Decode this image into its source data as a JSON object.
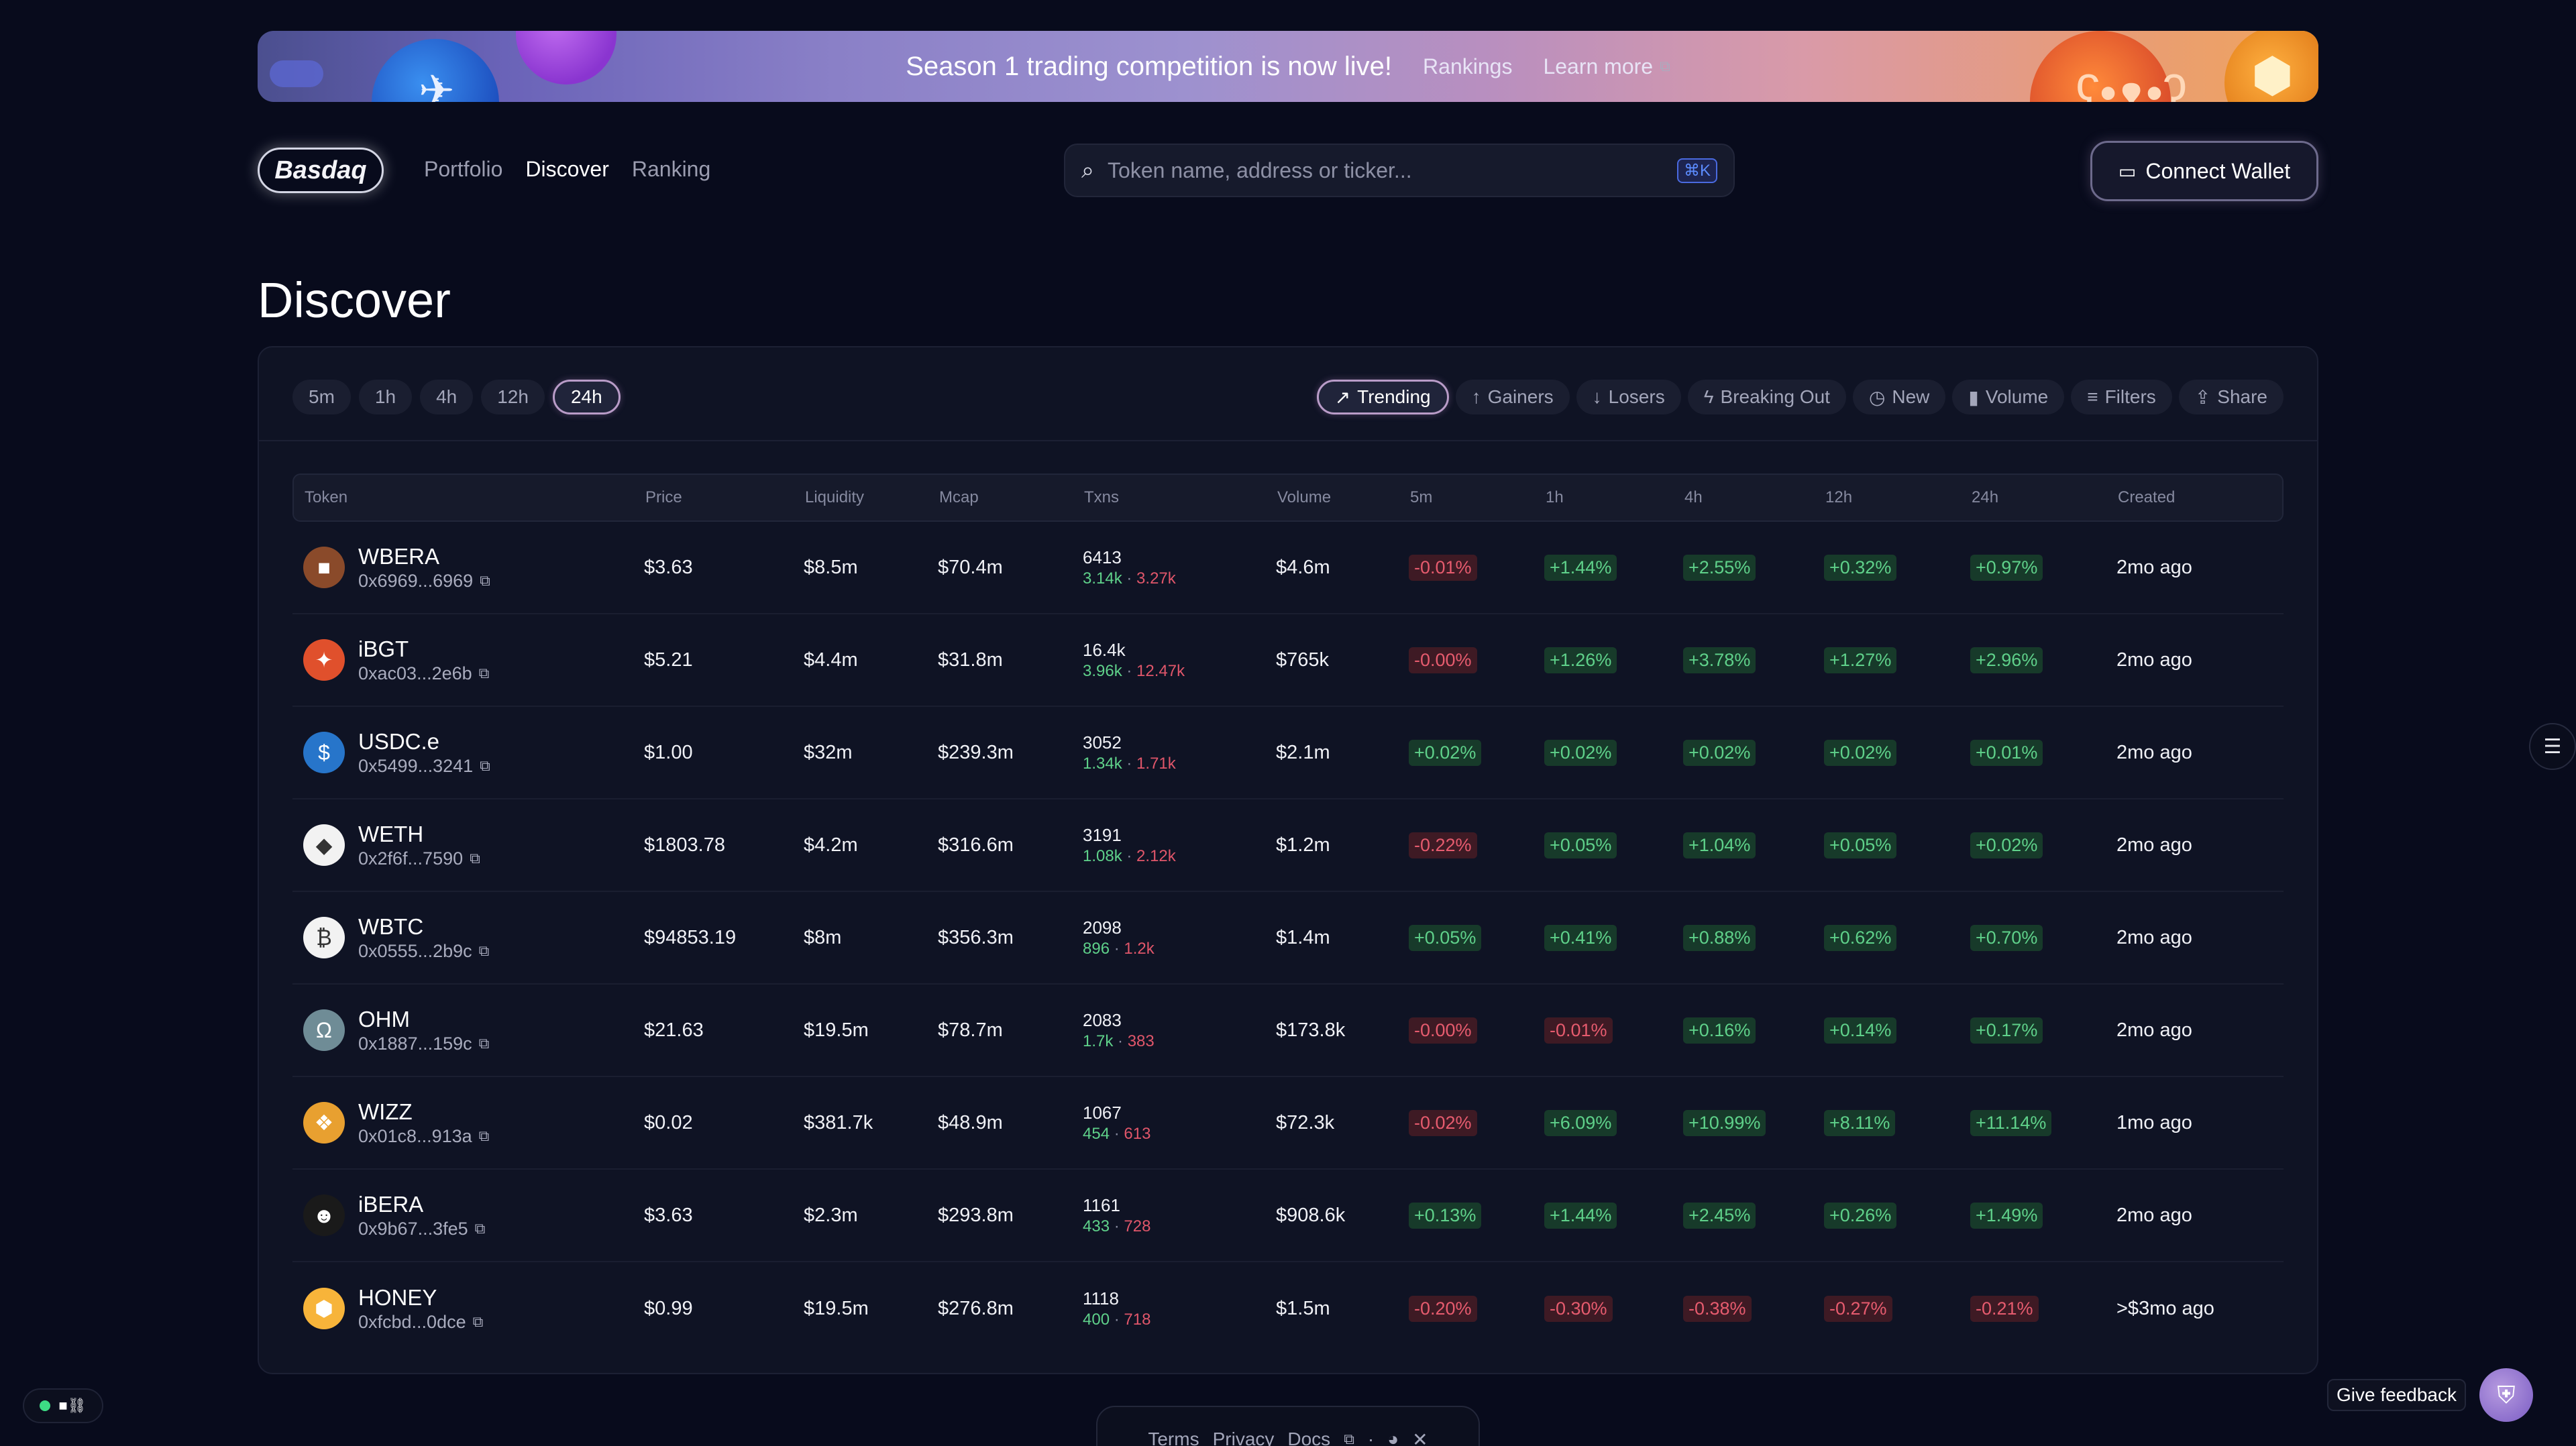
{
  "banner": {
    "title": "Season 1 trading competition is now live!",
    "rankings_link": "Rankings",
    "learn_more_link": "Learn more"
  },
  "header": {
    "logo": "Basdaq",
    "nav": [
      "Portfolio",
      "Discover",
      "Ranking"
    ],
    "active_nav": "Discover",
    "search_placeholder": "Token name, address or ticker...",
    "search_shortcut": "⌘K",
    "connect_wallet": "Connect Wallet"
  },
  "page": {
    "title": "Discover"
  },
  "timeframes": [
    "5m",
    "1h",
    "4h",
    "12h",
    "24h"
  ],
  "active_timeframe": "24h",
  "filters": [
    {
      "label": "Trending",
      "icon": "trending-up-icon",
      "glyph": "↗",
      "active": true
    },
    {
      "label": "Gainers",
      "icon": "arrow-up-icon",
      "glyph": "↑",
      "active": false
    },
    {
      "label": "Losers",
      "icon": "arrow-down-icon",
      "glyph": "↓",
      "active": false
    },
    {
      "label": "Breaking Out",
      "icon": "lightning-icon",
      "glyph": "ϟ",
      "active": false
    },
    {
      "label": "New",
      "icon": "clock-icon",
      "glyph": "◷",
      "active": false
    },
    {
      "label": "Volume",
      "icon": "bar-chart-icon",
      "glyph": "▮",
      "active": false
    },
    {
      "label": "Filters",
      "icon": "filter-icon",
      "glyph": "≡",
      "active": false
    },
    {
      "label": "Share",
      "icon": "share-icon",
      "glyph": "⇪",
      "active": false
    }
  ],
  "table": {
    "columns": [
      "Token",
      "Price",
      "Liquidity",
      "Mcap",
      "Txns",
      "Volume",
      "5m",
      "1h",
      "4h",
      "12h",
      "24h",
      "Created"
    ],
    "rows": [
      {
        "name": "WBERA",
        "address": "0x6969...6969",
        "icon_color": "#8a4a2a",
        "icon_glyph": "■",
        "price": "$3.63",
        "liquidity": "$8.5m",
        "mcap": "$70.4m",
        "txns": "6413",
        "buys": "3.14k",
        "sells": "3.27k",
        "volume": "$4.6m",
        "c5m": "-0.01%",
        "c1h": "+1.44%",
        "c4h": "+2.55%",
        "c12h": "+0.32%",
        "c24h": "+0.97%",
        "created": "2mo ago"
      },
      {
        "name": "iBGT",
        "address": "0xac03...2e6b",
        "icon_color": "#e0502c",
        "icon_glyph": "✦",
        "price": "$5.21",
        "liquidity": "$4.4m",
        "mcap": "$31.8m",
        "txns": "16.4k",
        "buys": "3.96k",
        "sells": "12.47k",
        "volume": "$765k",
        "c5m": "-0.00%",
        "c1h": "+1.26%",
        "c4h": "+3.78%",
        "c12h": "+1.27%",
        "c24h": "+2.96%",
        "created": "2mo ago"
      },
      {
        "name": "USDC.e",
        "address": "0x5499...3241",
        "icon_color": "#2775ca",
        "icon_glyph": "$",
        "price": "$1.00",
        "liquidity": "$32m",
        "mcap": "$239.3m",
        "txns": "3052",
        "buys": "1.34k",
        "sells": "1.71k",
        "volume": "$2.1m",
        "c5m": "+0.02%",
        "c1h": "+0.02%",
        "c4h": "+0.02%",
        "c12h": "+0.02%",
        "c24h": "+0.01%",
        "created": "2mo ago"
      },
      {
        "name": "WETH",
        "address": "0x2f6f...7590",
        "icon_color": "#f2f2f2",
        "icon_glyph": "◆",
        "price": "$1803.78",
        "liquidity": "$4.2m",
        "mcap": "$316.6m",
        "txns": "3191",
        "buys": "1.08k",
        "sells": "2.12k",
        "volume": "$1.2m",
        "c5m": "-0.22%",
        "c1h": "+0.05%",
        "c4h": "+1.04%",
        "c12h": "+0.05%",
        "c24h": "+0.02%",
        "created": "2mo ago"
      },
      {
        "name": "WBTC",
        "address": "0x0555...2b9c",
        "icon_color": "#f2f2f2",
        "icon_glyph": "₿",
        "price": "$94853.19",
        "liquidity": "$8m",
        "mcap": "$356.3m",
        "txns": "2098",
        "buys": "896",
        "sells": "1.2k",
        "volume": "$1.4m",
        "c5m": "+0.05%",
        "c1h": "+0.41%",
        "c4h": "+0.88%",
        "c12h": "+0.62%",
        "c24h": "+0.70%",
        "created": "2mo ago"
      },
      {
        "name": "OHM",
        "address": "0x1887...159c",
        "icon_color": "#6f8c96",
        "icon_glyph": "Ω",
        "price": "$21.63",
        "liquidity": "$19.5m",
        "mcap": "$78.7m",
        "txns": "2083",
        "buys": "1.7k",
        "sells": "383",
        "volume": "$173.8k",
        "c5m": "-0.00%",
        "c1h": "-0.01%",
        "c4h": "+0.16%",
        "c12h": "+0.14%",
        "c24h": "+0.17%",
        "created": "2mo ago"
      },
      {
        "name": "WIZZ",
        "address": "0x01c8...913a",
        "icon_color": "#e8a030",
        "icon_glyph": "❖",
        "price": "$0.02",
        "liquidity": "$381.7k",
        "mcap": "$48.9m",
        "txns": "1067",
        "buys": "454",
        "sells": "613",
        "volume": "$72.3k",
        "c5m": "-0.02%",
        "c1h": "+6.09%",
        "c4h": "+10.99%",
        "c12h": "+8.11%",
        "c24h": "+11.14%",
        "created": "1mo ago"
      },
      {
        "name": "iBERA",
        "address": "0x9b67...3fe5",
        "icon_color": "#1a1a1a",
        "icon_glyph": "☻",
        "price": "$3.63",
        "liquidity": "$2.3m",
        "mcap": "$293.8m",
        "txns": "1161",
        "buys": "433",
        "sells": "728",
        "volume": "$908.6k",
        "c5m": "+0.13%",
        "c1h": "+1.44%",
        "c4h": "+2.45%",
        "c12h": "+0.26%",
        "c24h": "+1.49%",
        "created": "2mo ago"
      },
      {
        "name": "HONEY",
        "address": "0xfcbd...0dce",
        "icon_color": "#f7b43a",
        "icon_glyph": "⬢",
        "price": "$0.99",
        "liquidity": "$19.5m",
        "mcap": "$276.8m",
        "txns": "1118",
        "buys": "400",
        "sells": "718",
        "volume": "$1.5m",
        "c5m": "-0.20%",
        "c1h": "-0.30%",
        "c4h": "-0.38%",
        "c12h": "-0.27%",
        "c24h": "-0.21%",
        "created": ">$3mo ago"
      }
    ]
  },
  "footer": {
    "links": [
      "Terms",
      "Privacy",
      "Docs"
    ]
  },
  "feedback": {
    "label": "Give feedback"
  },
  "status": {
    "label": "■⛓"
  }
}
